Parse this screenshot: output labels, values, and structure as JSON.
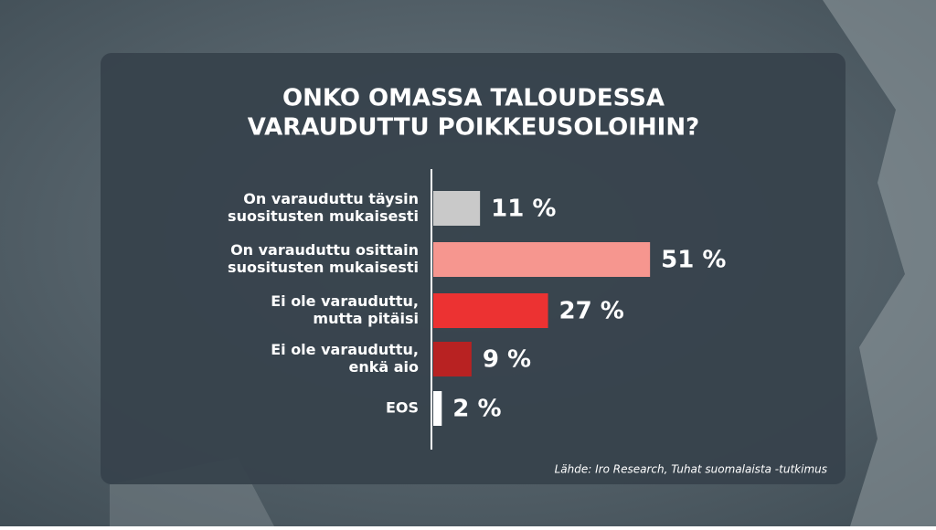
{
  "chart_data": {
    "type": "bar",
    "orientation": "horizontal",
    "title": [
      "ONKO OMASSA TALOUDESSA",
      "VARAUDUTTU POIKKEUSOLOIHIN?"
    ],
    "categories": [
      [
        "On varauduttu täysin",
        "suositusten mukaisesti"
      ],
      [
        "On varauduttu osittain",
        "suositusten mukaisesti"
      ],
      [
        "Ei ole varauduttu,",
        "mutta pitäisi"
      ],
      [
        "Ei ole varauduttu,",
        "enkä aio"
      ],
      [
        "EOS"
      ]
    ],
    "values": [
      11,
      51,
      27,
      9,
      2
    ],
    "value_labels": [
      "11 %",
      "51 %",
      "27 %",
      "9 %",
      "2 %"
    ],
    "colors": [
      "#c9c9c9",
      "#f6968f",
      "#ec3232",
      "#b82222",
      "#ffffff"
    ],
    "source": "Lähde: Iro Research, Tuhat suomalaista -tutkimus"
  }
}
